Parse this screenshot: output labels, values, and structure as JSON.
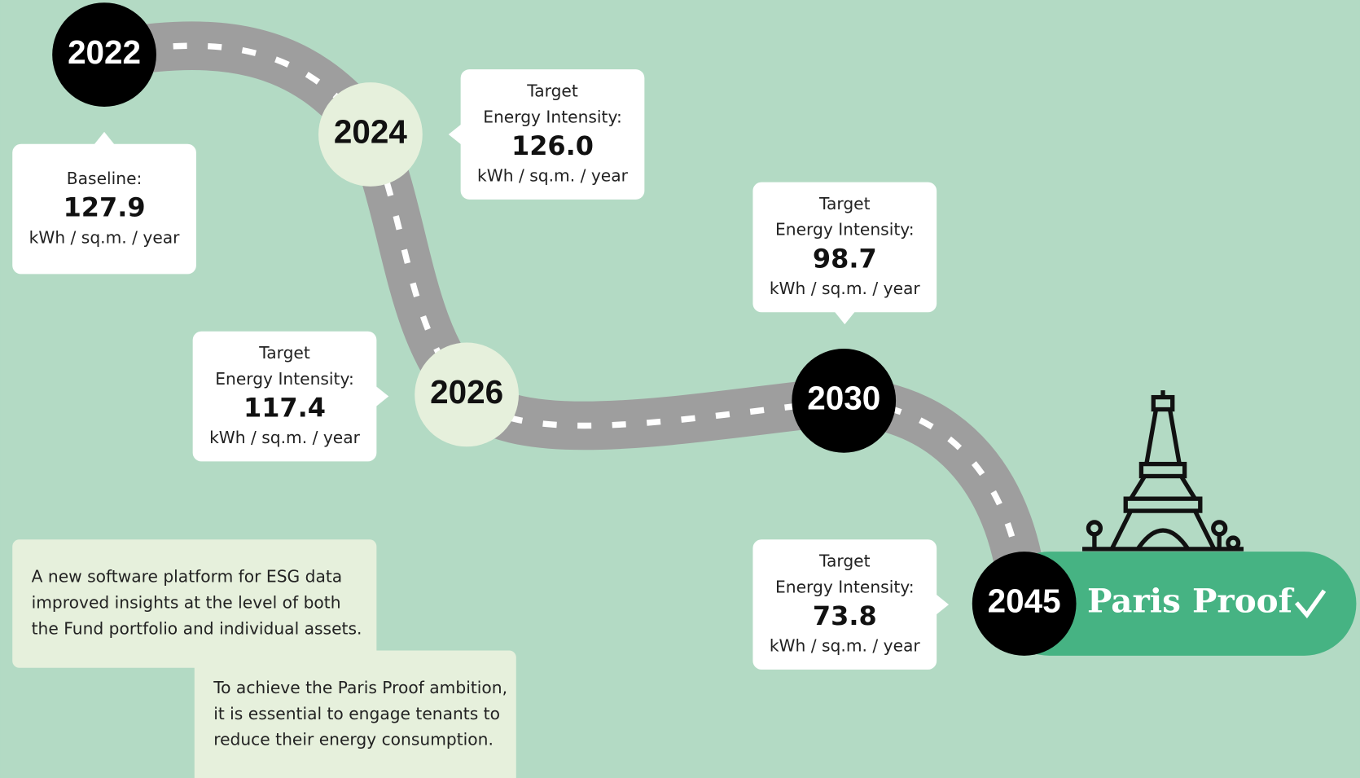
{
  "milestones": [
    {
      "year": "2022",
      "label_lines": [
        "Baseline:"
      ],
      "value": "127.9",
      "unit": "kWh / sq.m. / year"
    },
    {
      "year": "2024",
      "label_lines": [
        "Target",
        "Energy Intensity:"
      ],
      "value": "126.0",
      "unit": "kWh / sq.m. / year"
    },
    {
      "year": "2026",
      "label_lines": [
        "Target",
        "Energy Intensity:"
      ],
      "value": "117.4",
      "unit": "kWh / sq.m. / year"
    },
    {
      "year": "2030",
      "label_lines": [
        "Target",
        "Energy Intensity:"
      ],
      "value": "98.7",
      "unit": "kWh / sq.m. / year"
    },
    {
      "year": "2045",
      "label_lines": [
        "Target",
        "Energy Intensity:"
      ],
      "value": "73.8",
      "unit": "kWh / sq.m. / year"
    }
  ],
  "goal": "Paris Proof",
  "notes": [
    {
      "lines": [
        "A new software platform for ESG data",
        "improved insights at the level of both",
        "the Fund portfolio and individual assets."
      ]
    },
    {
      "lines": [
        "To achieve the Paris Proof ambition,",
        "it is essential to engage tenants to",
        "reduce their energy consumption."
      ]
    }
  ]
}
